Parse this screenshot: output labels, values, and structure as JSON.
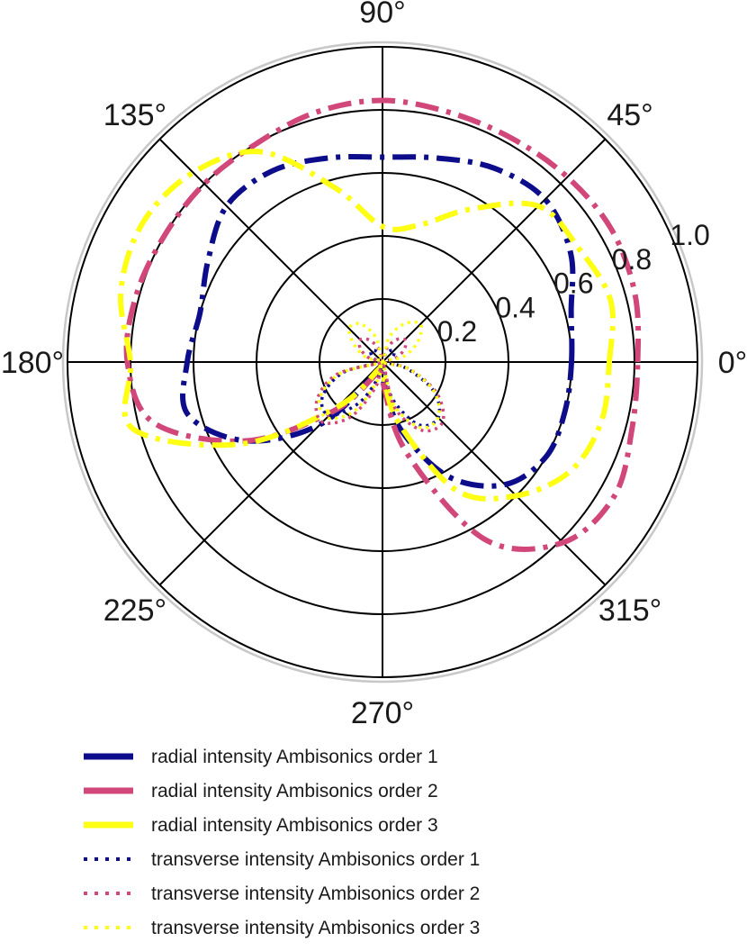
{
  "chart_data": {
    "type": "polar-line",
    "title": "",
    "angle_ticks": [
      {
        "deg": 0,
        "label": "0°"
      },
      {
        "deg": 45,
        "label": "45°"
      },
      {
        "deg": 90,
        "label": "90°"
      },
      {
        "deg": 135,
        "label": "135°"
      },
      {
        "deg": 180,
        "label": "180°"
      },
      {
        "deg": 225,
        "label": "225°"
      },
      {
        "deg": 270,
        "label": "270°"
      },
      {
        "deg": 315,
        "label": "315°"
      }
    ],
    "radial_ticks": [
      {
        "r": 0.2,
        "label": "0.2"
      },
      {
        "r": 0.4,
        "label": "0.4"
      },
      {
        "r": 0.6,
        "label": "0.6"
      },
      {
        "r": 0.8,
        "label": "0.8"
      },
      {
        "r": 1.0,
        "label": "1.0"
      }
    ],
    "rmax": 1.0,
    "grid": true,
    "legend_position": "bottom",
    "angles_deg": [
      0,
      15,
      30,
      45,
      60,
      75,
      90,
      105,
      120,
      135,
      150,
      165,
      180,
      195,
      210,
      225,
      240,
      255,
      270,
      285,
      300,
      315,
      330,
      345
    ],
    "series": [
      {
        "name": "radial intensity Ambisonics order 1",
        "style": "dashdot",
        "color": "#0d0d8c",
        "r": [
          0.6,
          0.62,
          0.69,
          0.73,
          0.71,
          0.67,
          0.65,
          0.67,
          0.7,
          0.7,
          0.64,
          0.6,
          0.62,
          0.64,
          0.5,
          0.28,
          0.04,
          0.02,
          0.05,
          0.22,
          0.42,
          0.55,
          0.6,
          0.6
        ]
      },
      {
        "name": "radial intensity Ambisonics order 2",
        "style": "dashdot",
        "color": "#d1477a",
        "r": [
          0.81,
          0.83,
          0.84,
          0.83,
          0.82,
          0.82,
          0.83,
          0.82,
          0.8,
          0.8,
          0.8,
          0.81,
          0.81,
          0.75,
          0.5,
          0.22,
          0.05,
          0.02,
          0.06,
          0.3,
          0.65,
          0.81,
          0.85,
          0.82
        ]
      },
      {
        "name": "radial intensity Ambisonics order 3",
        "style": "dashdot",
        "color": "#ffff14",
        "r": [
          0.72,
          0.75,
          0.72,
          0.7,
          0.56,
          0.45,
          0.43,
          0.57,
          0.77,
          0.85,
          0.88,
          0.86,
          0.8,
          0.82,
          0.52,
          0.2,
          0.03,
          0.02,
          0.03,
          0.2,
          0.47,
          0.6,
          0.69,
          0.72
        ]
      },
      {
        "name": "transverse intensity Ambisonics order 1",
        "style": "dotted",
        "color": "#0d0d8c",
        "r": [
          0.0,
          0.02,
          0.04,
          0.05,
          0.04,
          0.02,
          0.0,
          0.02,
          0.04,
          0.05,
          0.04,
          0.02,
          0.0,
          0.13,
          0.22,
          0.24,
          0.15,
          0.05,
          0.0,
          0.12,
          0.23,
          0.25,
          0.19,
          0.08
        ]
      },
      {
        "name": "transverse intensity Ambisonics order 2",
        "style": "dotted",
        "color": "#d1477a",
        "r": [
          0.0,
          0.04,
          0.08,
          0.1,
          0.08,
          0.04,
          0.0,
          0.04,
          0.08,
          0.1,
          0.08,
          0.04,
          0.0,
          0.15,
          0.24,
          0.27,
          0.2,
          0.08,
          0.0,
          0.15,
          0.25,
          0.27,
          0.2,
          0.09
        ]
      },
      {
        "name": "transverse intensity Ambisonics order 3",
        "style": "dotted",
        "color": "#ffff14",
        "r": [
          0.0,
          0.07,
          0.13,
          0.17,
          0.14,
          0.08,
          0.0,
          0.08,
          0.14,
          0.15,
          0.1,
          0.05,
          0.0,
          0.14,
          0.23,
          0.25,
          0.18,
          0.06,
          0.0,
          0.14,
          0.24,
          0.25,
          0.19,
          0.09
        ]
      }
    ]
  }
}
